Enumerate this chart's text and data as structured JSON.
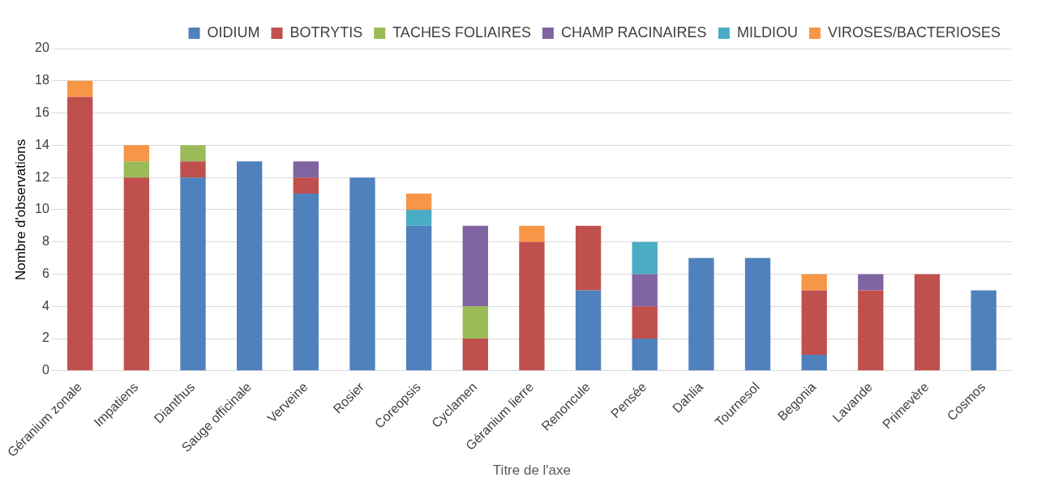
{
  "chart_data": {
    "type": "bar",
    "stacked": true,
    "xlabel": "Titre de l'axe",
    "ylabel": "Nombre d'observations",
    "categories": [
      "Géranium zonale",
      "Impatiens",
      "Dianthus",
      "Sauge officinale",
      "Verveine",
      "Rosier",
      "Coreopsis",
      "Cyclamen",
      "Géranium lierre",
      "Renoncule",
      "Pensée",
      "Dahlia",
      "Tournesol",
      "Begonia",
      "Lavande",
      "Primevère",
      "Cosmos"
    ],
    "series": [
      {
        "name": "OIDIUM",
        "color": "#4f81bd",
        "values": [
          null,
          null,
          12,
          13,
          11,
          12,
          9,
          null,
          null,
          5,
          2,
          7,
          7,
          1,
          null,
          null,
          5
        ]
      },
      {
        "name": "BOTRYTIS",
        "color": "#c0504d",
        "values": [
          17,
          12,
          1,
          null,
          1,
          null,
          null,
          2,
          8,
          4,
          2,
          null,
          null,
          4,
          5,
          6,
          null
        ]
      },
      {
        "name": "TACHES FOLIAIRES",
        "color": "#9bbb59",
        "values": [
          null,
          1,
          1,
          null,
          null,
          null,
          null,
          2,
          null,
          null,
          null,
          null,
          null,
          null,
          null,
          null,
          null
        ]
      },
      {
        "name": "CHAMP RACINAIRES",
        "color": "#8064a2",
        "values": [
          null,
          null,
          null,
          null,
          1,
          null,
          null,
          5,
          null,
          null,
          2,
          null,
          null,
          null,
          1,
          null,
          null
        ]
      },
      {
        "name": "MILDIOU",
        "color": "#4bacc6",
        "values": [
          null,
          null,
          null,
          null,
          null,
          null,
          1,
          null,
          null,
          null,
          2,
          null,
          null,
          null,
          null,
          null,
          null
        ]
      },
      {
        "name": "VIROSES/BACTERIOSES",
        "color": "#f79646",
        "values": [
          1,
          1,
          null,
          null,
          null,
          null,
          1,
          null,
          1,
          null,
          null,
          null,
          null,
          1,
          null,
          null,
          null
        ]
      }
    ],
    "ylim": [
      0,
      20
    ],
    "yticks": [
      0,
      2,
      4,
      6,
      8,
      10,
      12,
      14,
      16,
      18,
      20
    ],
    "grid": "y",
    "legend": "top right"
  }
}
